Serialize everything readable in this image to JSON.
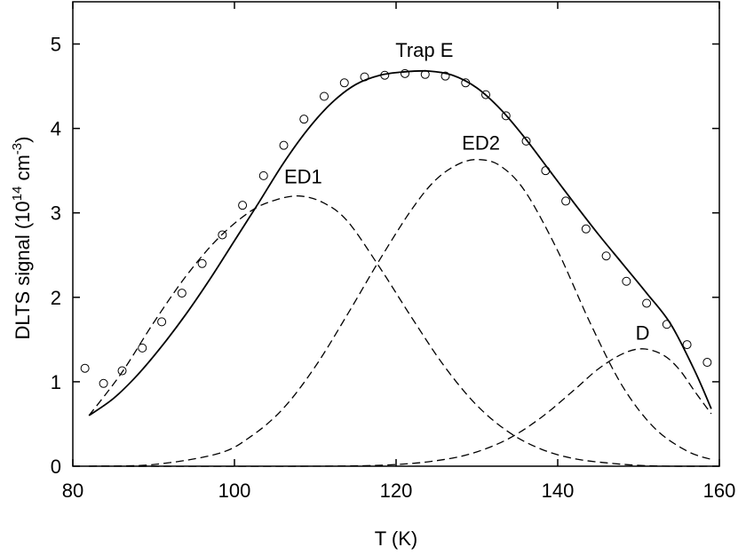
{
  "chart_data": {
    "type": "scatter",
    "title": "",
    "xlabel": "T (K)",
    "ylabel": {
      "prefix": "DLTS signal (10",
      "exp1": "14",
      "mid": " cm",
      "exp2": "-3",
      "suffix": ")"
    },
    "xlim": [
      80,
      160
    ],
    "ylim": [
      0,
      5.5
    ],
    "xticks": [
      80,
      100,
      120,
      140,
      160
    ],
    "yticks": [
      0,
      1,
      2,
      3,
      4,
      5
    ],
    "grid": false,
    "legend": "none",
    "annotations": [
      {
        "text": "Trap E",
        "x": 123.5,
        "y": 4.85
      },
      {
        "text": "ED1",
        "x": 108.5,
        "y": 3.35
      },
      {
        "text": "ED2",
        "x": 130.5,
        "y": 3.75
      },
      {
        "text": "D",
        "x": 150.5,
        "y": 1.5
      }
    ],
    "series": [
      {
        "style": "markers-open-circle",
        "x": [
          81.5,
          83.8,
          86.1,
          88.6,
          91.0,
          93.5,
          96.0,
          98.5,
          101.0,
          103.6,
          106.1,
          108.6,
          111.1,
          113.6,
          116.1,
          118.6,
          121.1,
          123.6,
          126.1,
          128.6,
          131.1,
          133.6,
          136.1,
          138.5,
          141.0,
          143.5,
          146.0,
          148.5,
          151.0,
          153.5,
          156.0,
          158.5
        ],
        "values": [
          1.16,
          0.98,
          1.13,
          1.4,
          1.71,
          2.05,
          2.4,
          2.74,
          3.09,
          3.44,
          3.8,
          4.11,
          4.38,
          4.54,
          4.61,
          4.63,
          4.65,
          4.64,
          4.62,
          4.54,
          4.4,
          4.15,
          3.85,
          3.5,
          3.14,
          2.81,
          2.49,
          2.19,
          1.93,
          1.68,
          1.44,
          1.23
        ]
      },
      {
        "style": "solid-line",
        "x": [
          82,
          85,
          88,
          91,
          94,
          97,
          100,
          103,
          106,
          109,
          112,
          115,
          118,
          121,
          124,
          127,
          130,
          133,
          136,
          139,
          142,
          145,
          148,
          151,
          154,
          157,
          159
        ],
        "values": [
          0.6,
          0.8,
          1.08,
          1.42,
          1.8,
          2.22,
          2.67,
          3.12,
          3.58,
          3.98,
          4.3,
          4.52,
          4.63,
          4.67,
          4.68,
          4.63,
          4.48,
          4.22,
          3.88,
          3.5,
          3.12,
          2.75,
          2.4,
          2.05,
          1.68,
          1.12,
          0.68
        ]
      },
      {
        "name": "ED1",
        "style": "dashed-line",
        "x": [
          82,
          86,
          90,
          94,
          98,
          102,
          105,
          108,
          111,
          114,
          118,
          122,
          126,
          130,
          134,
          138,
          142,
          146,
          150,
          154,
          159
        ],
        "values": [
          0.6,
          1.1,
          1.7,
          2.25,
          2.7,
          3.02,
          3.15,
          3.2,
          3.12,
          2.9,
          2.35,
          1.75,
          1.18,
          0.72,
          0.4,
          0.2,
          0.09,
          0.04,
          0.01,
          0.0,
          0.0
        ]
      },
      {
        "name": "ED2",
        "style": "dashed-line",
        "x": [
          82,
          90,
          98,
          102,
          106,
          110,
          114,
          118,
          122,
          125,
          128,
          130.5,
          133,
          136,
          140,
          144,
          148,
          152,
          156,
          159
        ],
        "values": [
          0.0,
          0.02,
          0.15,
          0.35,
          0.68,
          1.18,
          1.8,
          2.45,
          3.05,
          3.4,
          3.59,
          3.63,
          3.55,
          3.25,
          2.55,
          1.7,
          0.95,
          0.45,
          0.18,
          0.08
        ]
      },
      {
        "name": "D",
        "style": "dashed-line",
        "x": [
          82,
          110,
          120,
          126,
          130,
          134,
          138,
          142,
          145,
          148,
          150.5,
          153,
          155,
          157,
          159
        ],
        "values": [
          0.0,
          0.0,
          0.02,
          0.08,
          0.17,
          0.33,
          0.58,
          0.9,
          1.15,
          1.33,
          1.39,
          1.32,
          1.15,
          0.88,
          0.62
        ]
      }
    ]
  }
}
